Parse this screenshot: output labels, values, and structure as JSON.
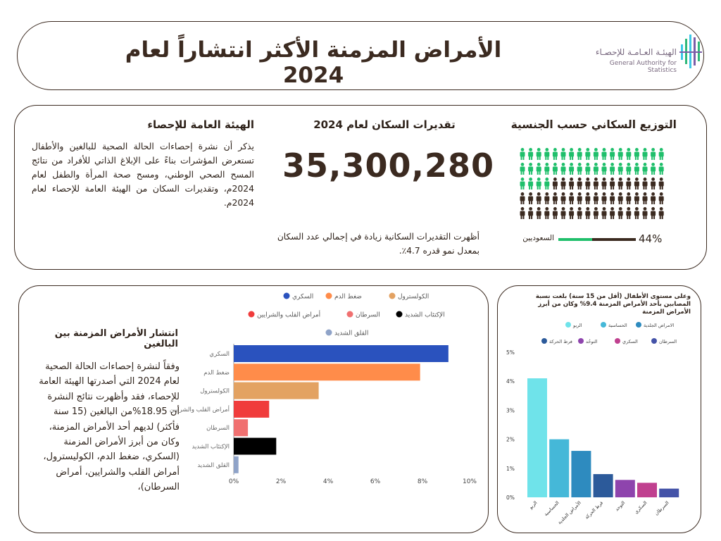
{
  "header": {
    "title": "الأمراض المزمنة الأكثر انتشاراً  لعام 2024",
    "logo_ar": "الهيئـة العـامـة للإحصـاء",
    "logo_en": "General Authority for Statistics"
  },
  "gastat": {
    "title": "الهيئة العامة للإحصاء",
    "body": "يذكر أن نشرة إحصاءات الحالة الصحية للبالغين والأطفال تستعرض المؤشرات بناءً على الإبلاغ الذاتي للأفراد من نتائج المسح الصحي الوطني، ومسح صحة المرأة والطفل لعام 2024م، وتقديرات السكان من الهيئة العامة للإحصاء لعام 2024م."
  },
  "population": {
    "title": "تقديرات السكان لعام 2024",
    "value": "35,300,280",
    "note": "أظهرت التقديرات السكانية زيادة في إجمالي عدد السكان بمعدل نمو قدره 4.7٪."
  },
  "nationality": {
    "title": "التوزيع السكاني حسب الجنسية",
    "percent_label": "44%",
    "saudi_share": 0.44,
    "saudi_label": "السعوديين",
    "icon_total": 90,
    "icon_saudi": 40,
    "colors": {
      "saudi": "#1fbf6b",
      "non_saudi": "#3b2a20"
    }
  },
  "adults": {
    "title": "انتشار الأمراض المزمنة بين البالغين",
    "text": "وفقاً لنشرة إحصاءات الحالة الصحية لعام 2024  التي أصدرتها الهيئة العامة للإحصاء، فقد وأظهرت نتائج النشرة أن 18.95%من البالغين (15 سنة فأكثر) لديهم أحد الأمراض المزمنة، وكان من أبرز الأمراض المزمنة (السكري، ضغط الدم، الكوليسترول، أمراض القلب والشرايين، أمراض السرطان)،"
  },
  "children": {
    "title": "وعلى مستوى الأطفال (أقل من 15 سنة) بلغت نسبة المصابين بأحد الأمراض المزمنة 9.4% وكان من أبرز الأمراض المزمنة"
  },
  "chart_data": [
    {
      "type": "bar",
      "orientation": "horizontal",
      "categories": [
        "السكري",
        "ضغط الدم",
        "الكولسترول",
        "أمراض القلب والشرايين",
        "السرطان",
        "الإكتئاب الشديد",
        "القلق الشديد"
      ],
      "values": [
        9.1,
        7.9,
        3.6,
        1.5,
        0.6,
        1.8,
        0.2
      ],
      "colors": [
        "#2a52be",
        "#ff8c4a",
        "#e3a262",
        "#f03c3c",
        "#f07070",
        "#000000",
        "#8fa3c8"
      ],
      "xlim": [
        0,
        10
      ],
      "xticks": [
        "0%",
        "2%",
        "4%",
        "6%",
        "8%",
        "10%"
      ],
      "legend": [
        "السكري",
        "ضغط الدم",
        "الكولسترول",
        "أمراض القلب والشرايين",
        "السرطان",
        "الإكتئاب الشديد",
        "القلق الشديد"
      ],
      "legend_position": "top"
    },
    {
      "type": "bar",
      "orientation": "vertical",
      "categories": [
        "الربو",
        "الحساسية",
        "الأمراض الجلدية",
        "فرط الحركة",
        "التوحد",
        "السكري",
        "السرطان"
      ],
      "values": [
        4.1,
        2.0,
        1.6,
        0.8,
        0.6,
        0.5,
        0.3
      ],
      "colors": [
        "#6fe3ea",
        "#45b8d8",
        "#2e8bbf",
        "#2c5a9a",
        "#8e44ad",
        "#c0408f",
        "#4453a8"
      ],
      "ylim": [
        0,
        5
      ],
      "yticks": [
        "0%",
        "1%",
        "2%",
        "3%",
        "4%",
        "5%"
      ],
      "legend": [
        "الربو",
        "الحساسية",
        "الامراض الجلدية",
        "فرط الحركة",
        "التوحُد",
        "السكري",
        "السرطان"
      ],
      "legend_position": "top"
    }
  ]
}
